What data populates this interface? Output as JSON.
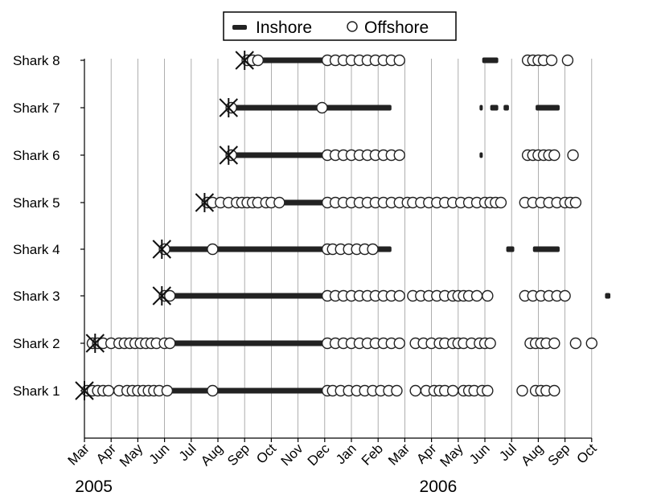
{
  "chart_data": {
    "type": "scatter",
    "title": "",
    "xlabel": "",
    "ylabel": "",
    "x_ticks": [
      "Mar",
      "Apr",
      "May",
      "Jun",
      "Jul",
      "Aug",
      "Sep",
      "Oct",
      "Nov",
      "Dec",
      "Jan",
      "Feb",
      "Mar",
      "Apr",
      "May",
      "Jun",
      "Jul",
      "Aug",
      "Sep",
      "Oct"
    ],
    "year_labels": [
      {
        "text": "2005",
        "at_month": 0.4
      },
      {
        "text": "2006",
        "at_month": 13.3
      }
    ],
    "xlim_months": [
      0,
      19
    ],
    "grid": "vertical month gridlines",
    "legend": {
      "placement": "top-center",
      "entries": [
        {
          "label": "Inshore",
          "marker": "dash"
        },
        {
          "label": "Offshore",
          "marker": "open-circle"
        }
      ]
    },
    "sharks": [
      {
        "label": "Shark 1",
        "tag_month": 0.0,
        "inshore": [
          [
            0.0,
            11.5
          ],
          [
            16.9,
            17.8
          ]
        ],
        "offshore": [
          0.1,
          0.3,
          0.5,
          0.7,
          0.9,
          1.3,
          1.6,
          1.8,
          2.0,
          2.2,
          2.4,
          2.6,
          2.8,
          3.1,
          4.8,
          9.1,
          9.3,
          9.6,
          9.9,
          10.2,
          10.5,
          10.8,
          11.1,
          11.4,
          11.7,
          12.4,
          12.8,
          13.1,
          13.3,
          13.5,
          13.8,
          14.2,
          14.4,
          14.6,
          14.9,
          15.1,
          16.4,
          16.9,
          17.1,
          17.3,
          17.6
        ]
      },
      {
        "label": "Shark 2",
        "tag_month": 0.4,
        "inshore": [
          [
            0.4,
            11.5
          ],
          [
            16.7,
            17.7
          ],
          [
            19.0,
            19.2
          ]
        ],
        "offshore": [
          0.3,
          0.5,
          0.7,
          1.0,
          1.3,
          1.5,
          1.7,
          1.9,
          2.1,
          2.3,
          2.5,
          2.7,
          3.0,
          3.2,
          9.1,
          9.4,
          9.7,
          10.0,
          10.3,
          10.6,
          10.9,
          11.2,
          11.5,
          11.8,
          12.4,
          12.7,
          13.0,
          13.3,
          13.5,
          13.8,
          14.0,
          14.2,
          14.5,
          14.8,
          15.0,
          15.2,
          16.7,
          16.9,
          17.1,
          17.3,
          17.6,
          18.4,
          19.0
        ]
      },
      {
        "label": "Shark 3",
        "tag_month": 2.9,
        "inshore": [
          [
            2.9,
            11.5
          ],
          [
            15.1,
            15.2
          ],
          [
            16.7,
            17.7
          ],
          [
            19.5,
            19.7
          ]
        ],
        "offshore": [
          3.0,
          3.2,
          9.1,
          9.4,
          9.7,
          10.0,
          10.3,
          10.6,
          10.9,
          11.2,
          11.5,
          11.8,
          12.3,
          12.6,
          12.9,
          13.2,
          13.5,
          13.8,
          14.0,
          14.2,
          14.4,
          14.7,
          15.1,
          16.5,
          16.8,
          17.1,
          17.4,
          17.7,
          18.0
        ]
      },
      {
        "label": "Shark 4",
        "tag_month": 2.9,
        "inshore": [
          [
            2.9,
            11.5
          ],
          [
            15.8,
            16.1
          ],
          [
            16.8,
            17.8
          ]
        ],
        "offshore": [
          3.0,
          4.8,
          9.1,
          9.3,
          9.6,
          9.9,
          10.2,
          10.5,
          10.8
        ]
      },
      {
        "label": "Shark 5",
        "tag_month": 4.5,
        "inshore": [
          [
            4.5,
            12.3
          ],
          [
            16.5,
            17.7
          ],
          [
            18.0,
            18.6
          ]
        ],
        "offshore": [
          4.6,
          4.8,
          5.1,
          5.4,
          5.7,
          5.9,
          6.1,
          6.3,
          6.5,
          6.8,
          7.0,
          7.3,
          9.1,
          9.4,
          9.7,
          10.0,
          10.3,
          10.6,
          10.9,
          11.2,
          11.5,
          11.8,
          12.1,
          12.3,
          12.6,
          12.9,
          13.2,
          13.5,
          13.8,
          14.1,
          14.4,
          14.7,
          15.0,
          15.2,
          15.4,
          15.6,
          16.5,
          16.8,
          17.1,
          17.4,
          17.7,
          18.0,
          18.2,
          18.4
        ]
      },
      {
        "label": "Shark 6",
        "tag_month": 5.4,
        "inshore": [
          [
            5.4,
            11.5
          ],
          [
            14.8,
            14.9
          ]
        ],
        "offshore": [
          5.5,
          9.1,
          9.4,
          9.7,
          10.0,
          10.3,
          10.6,
          10.9,
          11.2,
          11.5,
          11.8,
          16.6,
          16.8,
          17.0,
          17.2,
          17.4,
          17.6,
          18.3
        ]
      },
      {
        "label": "Shark  7",
        "tag_month": 5.4,
        "inshore": [
          [
            5.4,
            11.5
          ],
          [
            14.8,
            14.9
          ],
          [
            15.2,
            15.5
          ],
          [
            15.7,
            15.9
          ],
          [
            16.9,
            17.8
          ]
        ],
        "offshore": [
          5.5,
          8.9
        ]
      },
      {
        "label": "Shark 8",
        "tag_month": 6.0,
        "inshore": [
          [
            6.0,
            11.5
          ],
          [
            14.9,
            15.5
          ],
          [
            18.1,
            18.3
          ]
        ],
        "offshore": [
          6.1,
          6.3,
          6.5,
          9.1,
          9.4,
          9.7,
          10.0,
          10.3,
          10.6,
          10.9,
          11.2,
          11.5,
          11.8,
          16.6,
          16.8,
          17.0,
          17.2,
          17.5,
          18.1
        ]
      }
    ]
  }
}
